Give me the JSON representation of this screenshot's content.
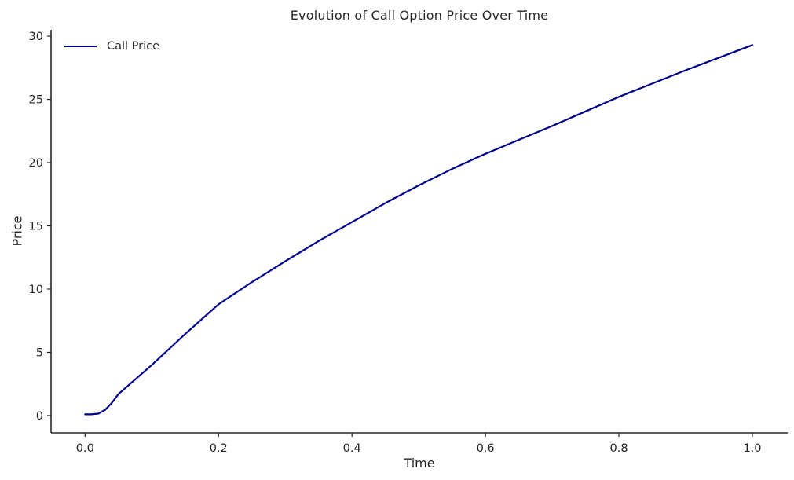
{
  "title": "Evolution of Call Option Price Over Time",
  "legend": {
    "label": "Call Price",
    "position": "upper left"
  },
  "colors": {
    "line": "#00008b",
    "axis": "#262626",
    "text": "#262626",
    "background": "#ffffff"
  },
  "chart_data": {
    "type": "line",
    "title": "Evolution of Call Option Price Over Time",
    "xlabel": "Time",
    "ylabel": "Price",
    "xlim": [
      -0.051,
      1.053
    ],
    "ylim": [
      -1.37,
      30.5
    ],
    "xticks": [
      0.0,
      0.2,
      0.4,
      0.6,
      0.8,
      1.0
    ],
    "xtick_labels": [
      "0.0",
      "0.2",
      "0.4",
      "0.6",
      "0.8",
      "1.0"
    ],
    "yticks": [
      0,
      5,
      10,
      15,
      20,
      25,
      30
    ],
    "ytick_labels": [
      "0",
      "5",
      "10",
      "15",
      "20",
      "25",
      "30"
    ],
    "grid": false,
    "legend_position": "upper left",
    "series": [
      {
        "name": "Call Price",
        "color": "#00008b",
        "x": [
          0.0,
          0.01,
          0.02,
          0.03,
          0.04,
          0.05,
          0.075,
          0.1,
          0.15,
          0.2,
          0.25,
          0.3,
          0.35,
          0.4,
          0.45,
          0.5,
          0.55,
          0.6,
          0.65,
          0.7,
          0.75,
          0.8,
          0.85,
          0.9,
          0.95,
          1.0
        ],
        "y": [
          0.1,
          0.1,
          0.15,
          0.45,
          1.0,
          1.7,
          2.85,
          4.0,
          6.45,
          8.8,
          10.55,
          12.2,
          13.8,
          15.3,
          16.8,
          18.2,
          19.5,
          20.7,
          21.8,
          22.9,
          24.05,
          25.2,
          26.25,
          27.3,
          28.3,
          29.3
        ]
      }
    ]
  }
}
